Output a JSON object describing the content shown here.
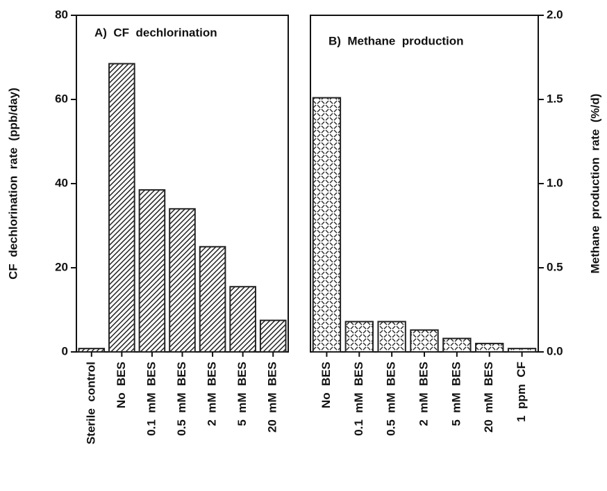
{
  "chart_data": [
    {
      "type": "bar",
      "title": "A)  CF  dechlorination",
      "y_label": "CF  dechlorination  rate  (ppb/day)",
      "categories": [
        "Sterile  control",
        "No  BES",
        "0.1  mM  BES",
        "0.5  mM  BES",
        "2  mM  BES",
        "5  mM  BES",
        "20  mM  BES"
      ],
      "values": [
        0.8,
        68.5,
        38.5,
        34,
        25,
        15.5,
        7.5
      ],
      "ylim": [
        0,
        80
      ],
      "yticks": [
        0,
        20,
        40,
        60,
        80
      ],
      "y_axis_side": "left",
      "pattern": "hatch",
      "color": "#222222"
    },
    {
      "type": "bar",
      "title": "B)  Methane  production",
      "y_label": "Methane  production  rate  (%/d)",
      "categories": [
        "No  BES",
        "0.1  mM  BES",
        "0.5  mM  BES",
        "2  mM  BES",
        "5  mM  BES",
        "20  mM  BES",
        "1  ppm  CF"
      ],
      "values": [
        1.51,
        0.18,
        0.18,
        0.13,
        0.08,
        0.05,
        0.02
      ],
      "ylim": [
        0,
        2
      ],
      "yticks": [
        {
          "value": 0,
          "label": "0.0"
        },
        0.5,
        {
          "value": 1,
          "label": "1.0"
        },
        1.5,
        {
          "value": 2,
          "label": "2.0"
        }
      ],
      "y_axis_side": "right",
      "pattern": "dash",
      "color": "#222222"
    }
  ]
}
